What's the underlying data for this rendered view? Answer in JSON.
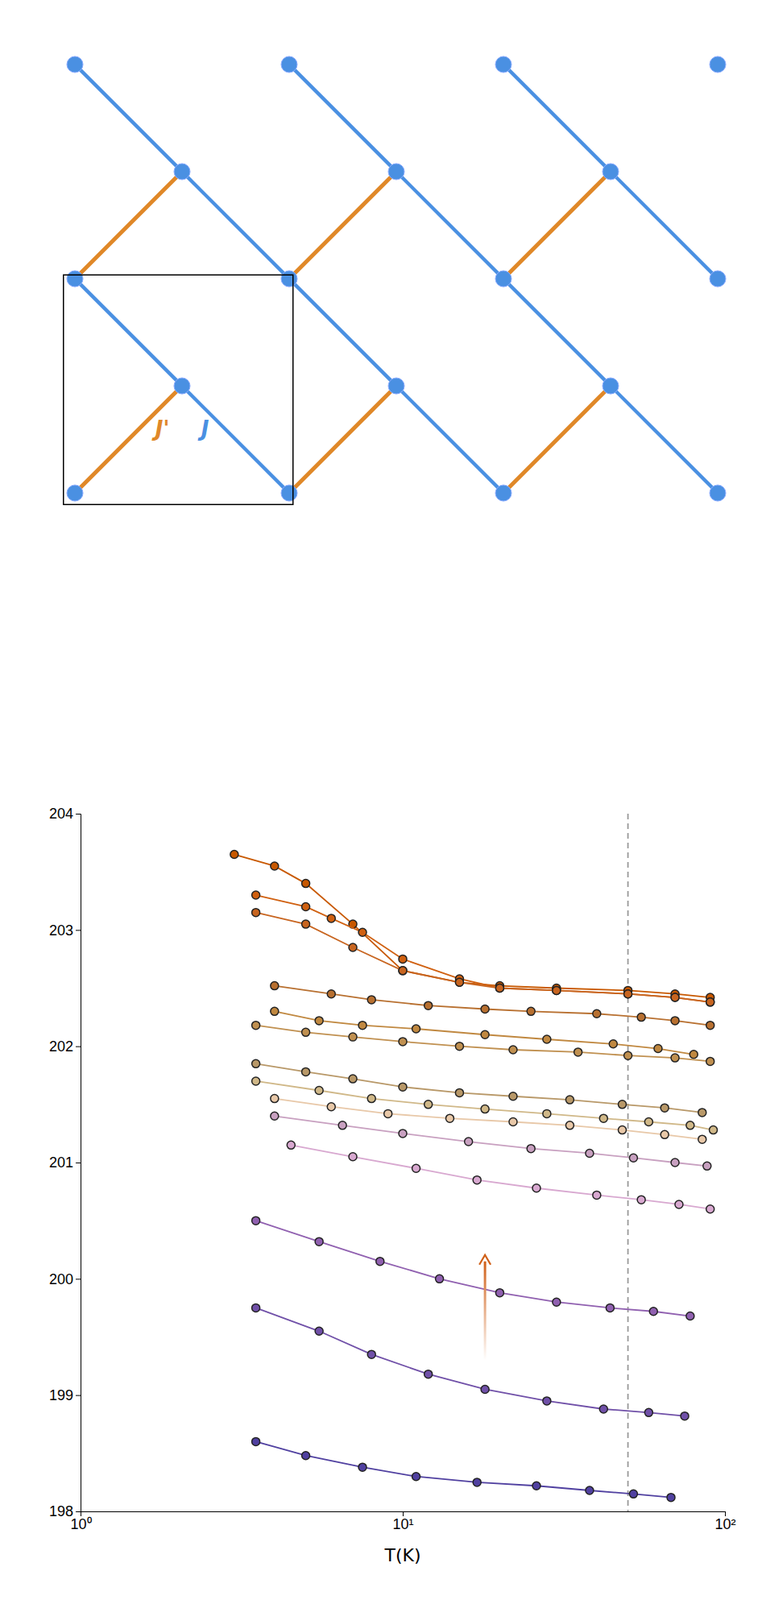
{
  "chart_data": {
    "type": "line",
    "x_label": "T(K)",
    "log": "x",
    "grid": false,
    "marker": "circle",
    "line_style": "solid",
    "xlim": [
      1,
      100
    ],
    "xticks": [
      {
        "value": 1,
        "label": "10⁰"
      },
      {
        "value": 10,
        "label": "10¹"
      },
      {
        "value": 100,
        "label": "10²"
      }
    ],
    "ylim": [
      198,
      204
    ],
    "yticks": [
      198,
      199,
      200,
      201,
      202,
      203,
      204
    ],
    "vline_x": 50.0,
    "arrow": {
      "x": 18.0,
      "y_bottom": 199.3,
      "y_top": 200.15,
      "color": "#d06018"
    },
    "annotations": [
      {
        "text": "J'",
        "color": "#e08828"
      },
      {
        "text": "J",
        "color": "#4a90e2"
      }
    ],
    "series": [
      {
        "color": "#c85800",
        "x": [
          3.0,
          4.0,
          5.0,
          7.0,
          10.0,
          15.0,
          20.0,
          30.0,
          50.0,
          70.0,
          90.0
        ],
        "values": [
          203.65,
          203.55,
          203.4,
          203.05,
          202.65,
          202.55,
          202.52,
          202.5,
          202.48,
          202.45,
          202.42
        ]
      },
      {
        "color": "#d06010",
        "x": [
          3.5,
          5.0,
          6.0,
          7.5,
          10.0,
          15.0,
          20.0,
          30.0,
          50.0,
          70.0,
          90.0
        ],
        "values": [
          203.3,
          203.2,
          203.1,
          202.98,
          202.75,
          202.58,
          202.5,
          202.48,
          202.45,
          202.42,
          202.38
        ]
      },
      {
        "color": "#c86520",
        "x": [
          3.5,
          5.0,
          7.0,
          10.0,
          15.0,
          20.0,
          30.0,
          50.0,
          70.0,
          90.0
        ],
        "values": [
          203.15,
          203.05,
          202.85,
          202.65,
          202.55,
          202.5,
          202.48,
          202.45,
          202.42,
          202.38
        ]
      },
      {
        "color": "#b87030",
        "x": [
          4.0,
          6.0,
          8.0,
          12.0,
          18.0,
          25.0,
          40.0,
          55.0,
          70.0,
          90.0
        ],
        "values": [
          202.52,
          202.45,
          202.4,
          202.35,
          202.32,
          202.3,
          202.28,
          202.25,
          202.22,
          202.18
        ]
      },
      {
        "color": "#c08840",
        "x": [
          4.0,
          5.5,
          7.5,
          11.0,
          18.0,
          28.0,
          45.0,
          62.0,
          80.0
        ],
        "values": [
          202.3,
          202.22,
          202.18,
          202.15,
          202.1,
          202.06,
          202.02,
          201.98,
          201.93
        ]
      },
      {
        "color": "#c09050",
        "x": [
          3.5,
          5.0,
          7.0,
          10.0,
          15.0,
          22.0,
          35.0,
          50.0,
          70.0,
          90.0
        ],
        "values": [
          202.18,
          202.12,
          202.08,
          202.04,
          202.0,
          201.97,
          201.95,
          201.92,
          201.9,
          201.87
        ]
      },
      {
        "color": "#b89868",
        "x": [
          3.5,
          5.0,
          7.0,
          10.0,
          15.0,
          22.0,
          33.0,
          48.0,
          65.0,
          85.0
        ],
        "values": [
          201.85,
          201.78,
          201.72,
          201.65,
          201.6,
          201.57,
          201.54,
          201.5,
          201.47,
          201.43
        ]
      },
      {
        "color": "#d0b888",
        "x": [
          3.5,
          5.5,
          8.0,
          12.0,
          18.0,
          28.0,
          42.0,
          58.0,
          78.0,
          92.0
        ],
        "values": [
          201.7,
          201.62,
          201.55,
          201.5,
          201.46,
          201.42,
          201.38,
          201.35,
          201.32,
          201.28
        ]
      },
      {
        "color": "#e8c8a8",
        "x": [
          4.0,
          6.0,
          9.0,
          14.0,
          22.0,
          33.0,
          48.0,
          65.0,
          85.0
        ],
        "values": [
          201.55,
          201.48,
          201.42,
          201.38,
          201.35,
          201.32,
          201.28,
          201.24,
          201.2
        ]
      },
      {
        "color": "#c8a0c0",
        "x": [
          4.0,
          6.5,
          10.0,
          16.0,
          25.0,
          38.0,
          52.0,
          70.0,
          88.0
        ],
        "values": [
          201.4,
          201.32,
          201.25,
          201.18,
          201.12,
          201.08,
          201.04,
          201.0,
          200.97
        ]
      },
      {
        "color": "#d8a8d0",
        "x": [
          4.5,
          7.0,
          11.0,
          17.0,
          26.0,
          40.0,
          55.0,
          72.0,
          90.0
        ],
        "values": [
          201.15,
          201.05,
          200.95,
          200.85,
          200.78,
          200.72,
          200.68,
          200.64,
          200.6
        ]
      },
      {
        "color": "#9060b0",
        "x": [
          3.5,
          5.5,
          8.5,
          13.0,
          20.0,
          30.0,
          44.0,
          60.0,
          78.0
        ],
        "values": [
          200.5,
          200.32,
          200.15,
          200.0,
          199.88,
          199.8,
          199.75,
          199.72,
          199.68
        ]
      },
      {
        "color": "#7050a8",
        "x": [
          3.5,
          5.5,
          8.0,
          12.0,
          18.0,
          28.0,
          42.0,
          58.0,
          75.0
        ],
        "values": [
          199.75,
          199.55,
          199.35,
          199.18,
          199.05,
          198.95,
          198.88,
          198.85,
          198.82
        ]
      },
      {
        "color": "#5040a0",
        "x": [
          3.5,
          5.0,
          7.5,
          11.0,
          17.0,
          26.0,
          38.0,
          52.0,
          68.0
        ],
        "values": [
          198.6,
          198.48,
          198.38,
          198.3,
          198.25,
          198.22,
          198.18,
          198.15,
          198.12
        ]
      }
    ]
  }
}
